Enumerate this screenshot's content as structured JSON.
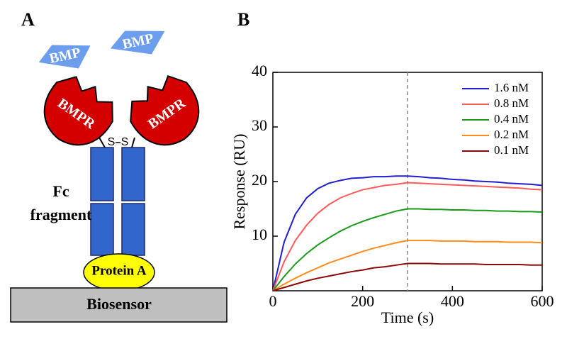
{
  "panel_a": {
    "label": "A",
    "bmp_labels": [
      "BMP",
      "BMP"
    ],
    "receptor_labels": [
      "BMPR",
      "BMPR"
    ],
    "disulfide": [
      "S",
      "S"
    ],
    "fc_label": [
      "Fc",
      "fragment"
    ],
    "protein_a": "Protein A",
    "biosensor": "Biosensor"
  },
  "chart_data": {
    "type": "line",
    "panel_label": "B",
    "xlabel": "Time (s)",
    "ylabel": "Response (RU)",
    "x": [
      0,
      25,
      50,
      75,
      100,
      125,
      150,
      175,
      200,
      225,
      250,
      275,
      300,
      325,
      350,
      375,
      400,
      425,
      450,
      475,
      500,
      525,
      550,
      575,
      600
    ],
    "series": [
      {
        "name": "1.6 nM",
        "color": "#1f1fd0",
        "values": [
          0,
          8.9,
          14.0,
          17.0,
          18.7,
          19.7,
          20.2,
          20.6,
          20.7,
          20.9,
          20.9,
          21.0,
          21.0,
          20.9,
          20.7,
          20.6,
          20.4,
          20.3,
          20.1,
          20.0,
          19.9,
          19.7,
          19.6,
          19.5,
          19.3
        ]
      },
      {
        "name": "0.8 nM",
        "color": "#ff5a5a",
        "values": [
          0,
          5.3,
          9.2,
          12.0,
          14.2,
          15.8,
          17.0,
          17.8,
          18.5,
          18.9,
          19.3,
          19.5,
          19.8,
          19.7,
          19.6,
          19.5,
          19.4,
          19.3,
          19.2,
          19.1,
          19.0,
          18.9,
          18.8,
          18.6,
          18.5
        ]
      },
      {
        "name": "0.4 nM",
        "color": "#1a9a1a",
        "values": [
          0,
          2.6,
          4.9,
          6.8,
          8.4,
          9.7,
          10.9,
          11.9,
          12.7,
          13.4,
          14.0,
          14.6,
          15.0,
          15.0,
          14.9,
          14.9,
          14.8,
          14.8,
          14.7,
          14.7,
          14.6,
          14.6,
          14.5,
          14.5,
          14.4
        ]
      },
      {
        "name": "0.2 nM",
        "color": "#ff8c1a",
        "values": [
          0,
          1.2,
          2.3,
          3.3,
          4.2,
          5.1,
          5.8,
          6.5,
          7.2,
          7.8,
          8.3,
          8.8,
          9.2,
          9.2,
          9.2,
          9.1,
          9.1,
          9.1,
          9.0,
          9.0,
          9.0,
          8.9,
          8.9,
          8.9,
          8.8
        ]
      },
      {
        "name": "0.1 nM",
        "color": "#8b0a0a",
        "values": [
          0,
          0.6,
          1.2,
          1.8,
          2.3,
          2.7,
          3.1,
          3.5,
          3.8,
          4.2,
          4.4,
          4.7,
          5.0,
          5.0,
          5.0,
          4.9,
          4.9,
          4.9,
          4.9,
          4.8,
          4.8,
          4.8,
          4.8,
          4.7,
          4.7
        ]
      }
    ],
    "xlim": [
      0,
      600
    ],
    "xticks": [
      0,
      200,
      400,
      600
    ],
    "ylim": [
      0,
      40
    ],
    "yticks": [
      10,
      20,
      30,
      40
    ],
    "vline": 300,
    "legend": "upper right"
  }
}
